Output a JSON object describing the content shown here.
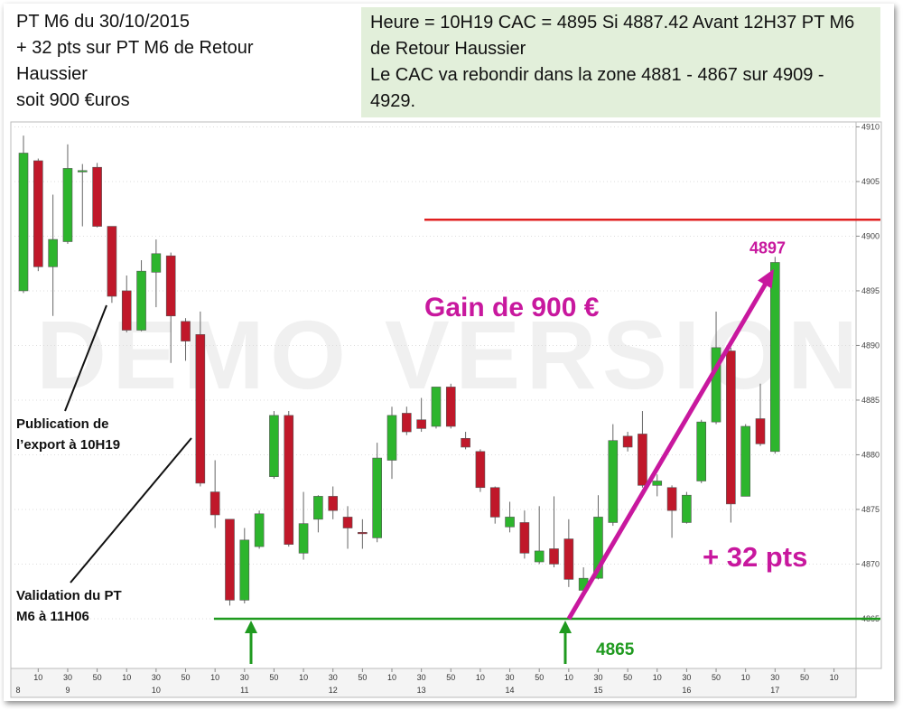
{
  "header": {
    "lines": [
      "PT M6 du 30/10/2015",
      "+ 32 pts sur PT M6 de Retour Haussier",
      "soit 900 €uros"
    ]
  },
  "info": {
    "lines": [
      "Heure = 10H19 CAC = 4895 Si 4887.42  Avant 12H37  PT M6 de Retour Haussier",
      "Le CAC va rebondir dans la zone 4881 - 4867 sur 4909 - 4929."
    ]
  },
  "chart_data": {
    "type": "candlestick",
    "watermark": "DEMO VERSION",
    "categories": [
      null,
      "10",
      null,
      "30",
      null,
      "50",
      null,
      "10",
      null,
      "30",
      null,
      "50",
      null,
      "10",
      null,
      "30",
      null,
      "50",
      null,
      "10",
      null,
      "30",
      null,
      "50",
      null,
      "10",
      null,
      "30",
      null,
      "50",
      null,
      "10",
      null,
      "30",
      null,
      "50",
      null,
      "10",
      null,
      "30",
      null,
      "50",
      null,
      "10",
      null,
      "30",
      null,
      "50",
      null,
      "10",
      null,
      "30",
      null,
      "50",
      null,
      "10",
      null
    ],
    "hour_labels": [
      "8",
      null,
      null,
      "9",
      null,
      null,
      null,
      null,
      null,
      "10",
      null,
      null,
      null,
      null,
      null,
      "11",
      null,
      null,
      null,
      null,
      null,
      "12",
      null,
      null,
      null,
      null,
      null,
      "13",
      null,
      null,
      null,
      null,
      null,
      "14",
      null,
      null,
      null,
      null,
      null,
      "15",
      null,
      null,
      null,
      null,
      null,
      "16",
      null,
      null,
      null,
      null,
      null,
      "17",
      null,
      null,
      null,
      null,
      null
    ],
    "open": [
      4895.0,
      4906.9,
      4897.2,
      4899.5,
      4905.9,
      4906.3,
      4900.9,
      4895.0,
      4891.4,
      4896.7,
      4898.2,
      4892.2,
      4891.0,
      4876.6,
      4874.1,
      4866.7,
      4871.6,
      4878.0,
      4883.6,
      4871.0,
      4874.1,
      4876.2,
      4874.3,
      4872.9,
      4872.4,
      4879.5,
      4883.8,
      4883.2,
      4882.6,
      4886.2,
      4881.5,
      4880.3,
      4877.0,
      4873.4,
      4873.8,
      4870.2,
      4871.4,
      4872.3,
      4867.6,
      4868.7,
      4873.8,
      4881.7,
      4881.9,
      4877.2,
      4877.0,
      4873.8,
      4877.6,
      4883.0,
      4889.5,
      4876.2,
      4883.3,
      4880.3,
      null,
      null,
      null,
      null,
      null
    ],
    "high": [
      4909.2,
      4907.1,
      4903.8,
      4908.4,
      4906.6,
      4906.7,
      4900.9,
      4896.4,
      4897.8,
      4899.7,
      4898.5,
      4892.5,
      4893.1,
      4879.5,
      4874.1,
      4873.3,
      4874.9,
      4884.0,
      4884.0,
      4876.6,
      4876.3,
      4877.1,
      4875.3,
      4874.1,
      4881.1,
      4884.4,
      4884.4,
      4885.2,
      4886.2,
      4886.5,
      4882.1,
      4880.5,
      4877.1,
      4875.7,
      4874.9,
      4875.3,
      4876.2,
      4874.1,
      4869.7,
      4876.3,
      4882.8,
      4882.1,
      4884.0,
      4878.2,
      4877.2,
      4876.6,
      4883.2,
      4893.1,
      4889.8,
      4882.8,
      4886.5,
      4898.1,
      null,
      null,
      null,
      null,
      null
    ],
    "low": [
      4894.8,
      4896.8,
      4892.7,
      4899.3,
      4900.9,
      4900.8,
      4893.9,
      4891.2,
      4891.3,
      4893.5,
      4888.4,
      4888.6,
      4877.1,
      4873.3,
      4866.2,
      4866.4,
      4871.4,
      4877.8,
      4871.6,
      4870.4,
      4872.9,
      4874.1,
      4871.4,
      4871.4,
      4872.0,
      4877.8,
      4881.8,
      4882.1,
      4882.4,
      4882.4,
      4880.5,
      4876.6,
      4873.7,
      4872.9,
      4870.5,
      4870.0,
      4869.7,
      4867.9,
      4867.2,
      4868.6,
      4873.5,
      4880.3,
      4877.0,
      4876.2,
      4872.4,
      4873.7,
      4877.4,
      4882.8,
      4873.8,
      4876.2,
      4880.8,
      4880.1,
      null,
      null,
      null,
      null,
      null
    ],
    "close": [
      4907.6,
      4897.2,
      4899.7,
      4906.2,
      4906.0,
      4900.9,
      4894.5,
      4891.4,
      4896.8,
      4898.4,
      4892.7,
      4890.4,
      4877.4,
      4874.5,
      4866.7,
      4872.2,
      4874.6,
      4883.6,
      4871.8,
      4873.7,
      4876.2,
      4874.9,
      4873.3,
      4872.8,
      4879.7,
      4883.6,
      4882.1,
      4882.4,
      4886.2,
      4882.6,
      4880.7,
      4877.0,
      4874.3,
      4874.3,
      4871.0,
      4871.2,
      4870.0,
      4868.6,
      4868.7,
      4874.3,
      4881.3,
      4880.7,
      4877.2,
      4877.6,
      4874.9,
      4876.3,
      4883.0,
      4889.8,
      4875.5,
      4882.6,
      4881.0,
      4897.6,
      null,
      null,
      null,
      null,
      null
    ],
    "up_color": "#2db52d",
    "down_color": "#c0182a",
    "ylim": [
      4860.45,
      4910.45
    ],
    "yticks": [
      4865,
      4870,
      4875,
      4880,
      4885,
      4890,
      4895,
      4900,
      4905,
      4910
    ],
    "grid": true,
    "resistance": 4901.5,
    "resistance_color": "#e02020",
    "support": 4865,
    "support_color": "#1f9a1f",
    "target": 4897,
    "arrow_color": "#c8189e",
    "gain_text": "Gain de 900 €",
    "points_text": "+ 32 pts",
    "notes": [
      "Publication de l’export à 10H19",
      "Validation du PT M6 à 11H06"
    ]
  }
}
